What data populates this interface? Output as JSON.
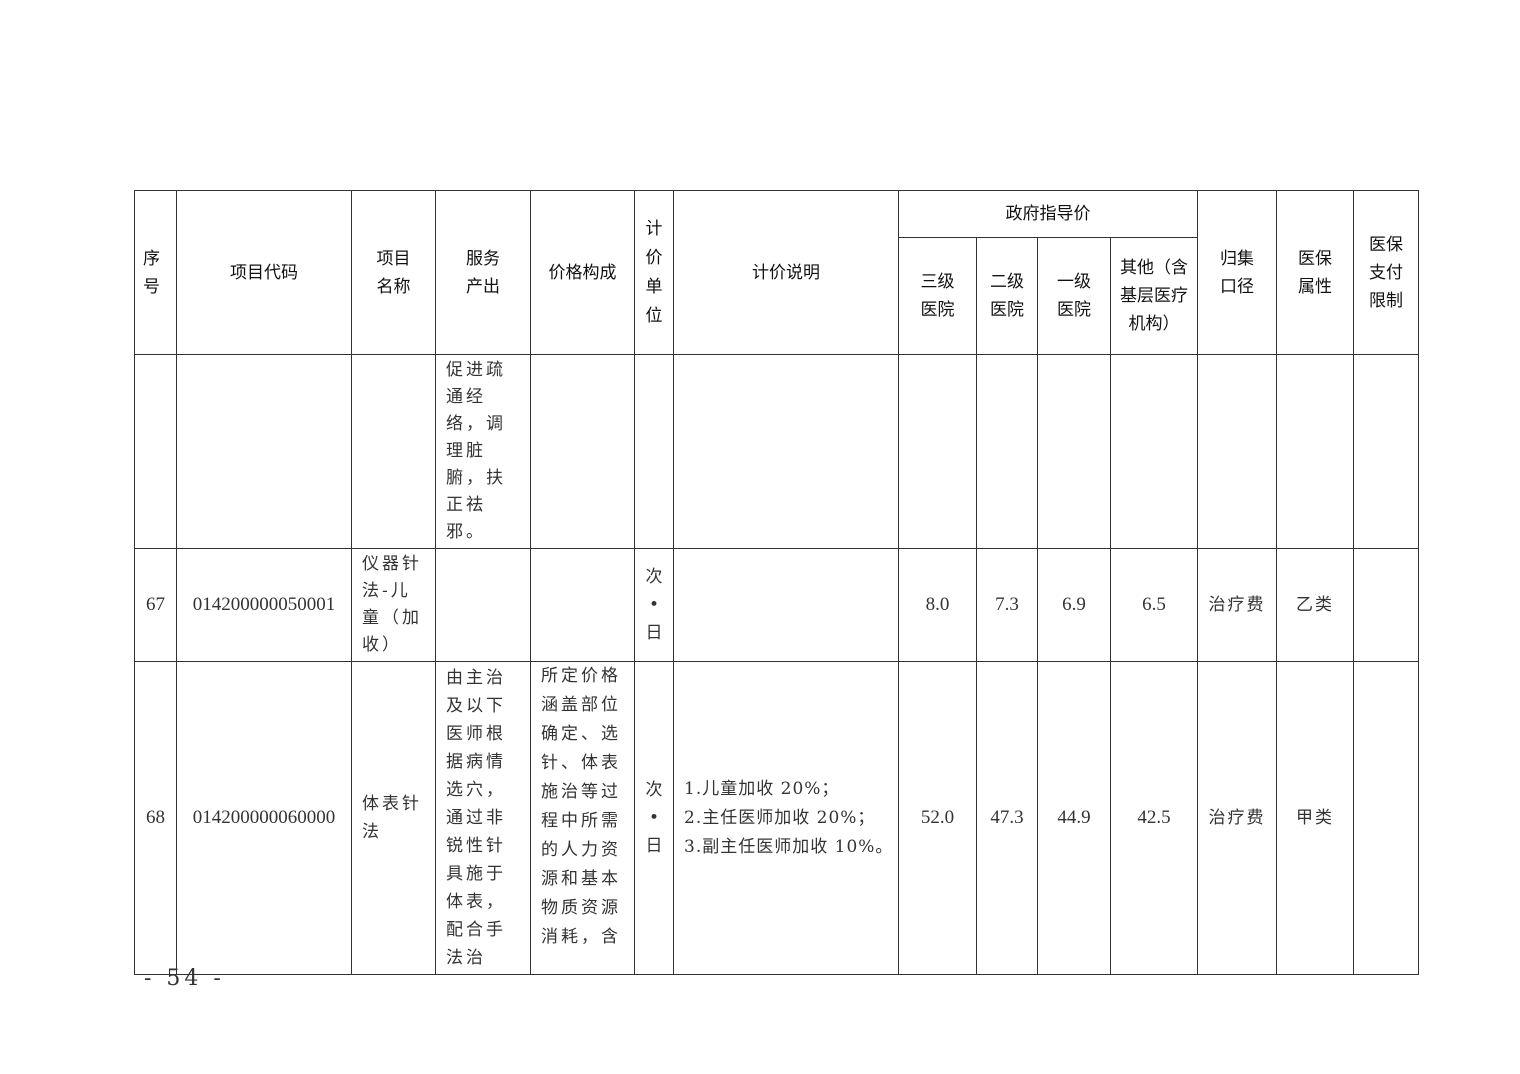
{
  "table": {
    "headers": {
      "seq": "序号",
      "code": "项目代码",
      "name": "项目名称",
      "output": "服务产出",
      "composition": "价格构成",
      "unit": "计价单位",
      "notes": "计价说明",
      "gov_price": "政府指导价",
      "tier3": "三级医院",
      "tier2": "二级医院",
      "tier1": "一级医院",
      "other": "其他（含基层医疗机构）",
      "category": "归集口径",
      "insurance": "医保属性",
      "limit": "医保支付限制"
    },
    "rows": [
      {
        "seq": "",
        "code": "",
        "name": "",
        "output": "促进疏通经络，调理脏腑，扶正祛邪。",
        "composition": "",
        "unit": "",
        "notes": [],
        "tier3": "",
        "tier2": "",
        "tier1": "",
        "other": "",
        "category": "",
        "insurance": "",
        "limit": ""
      },
      {
        "seq": "67",
        "code": "014200000050001",
        "name": "仪器针法-儿童（加收）",
        "output": "",
        "composition": "",
        "unit": "次•日",
        "notes": [],
        "tier3": "8.0",
        "tier2": "7.3",
        "tier1": "6.9",
        "other": "6.5",
        "category": "治疗费",
        "insurance": "乙类",
        "limit": ""
      },
      {
        "seq": "68",
        "code": "014200000060000",
        "name": "体表针法",
        "output": "由主治及以下医师根据病情选穴，通过非锐性针具施于体表，配合手法治",
        "composition": "所定价格涵盖部位确定、选针、体表施治等过程中所需的人力资源和基本物质资源消耗，含",
        "unit": "次•日",
        "notes": [
          "1.儿童加收 20%；",
          "2.主任医师加收 20%；",
          "3.副主任医师加收 10%。"
        ],
        "tier3": "52.0",
        "tier2": "47.3",
        "tier1": "44.9",
        "other": "42.5",
        "category": "治疗费",
        "insurance": "甲类",
        "limit": ""
      }
    ]
  },
  "page_number": "- 54 -"
}
